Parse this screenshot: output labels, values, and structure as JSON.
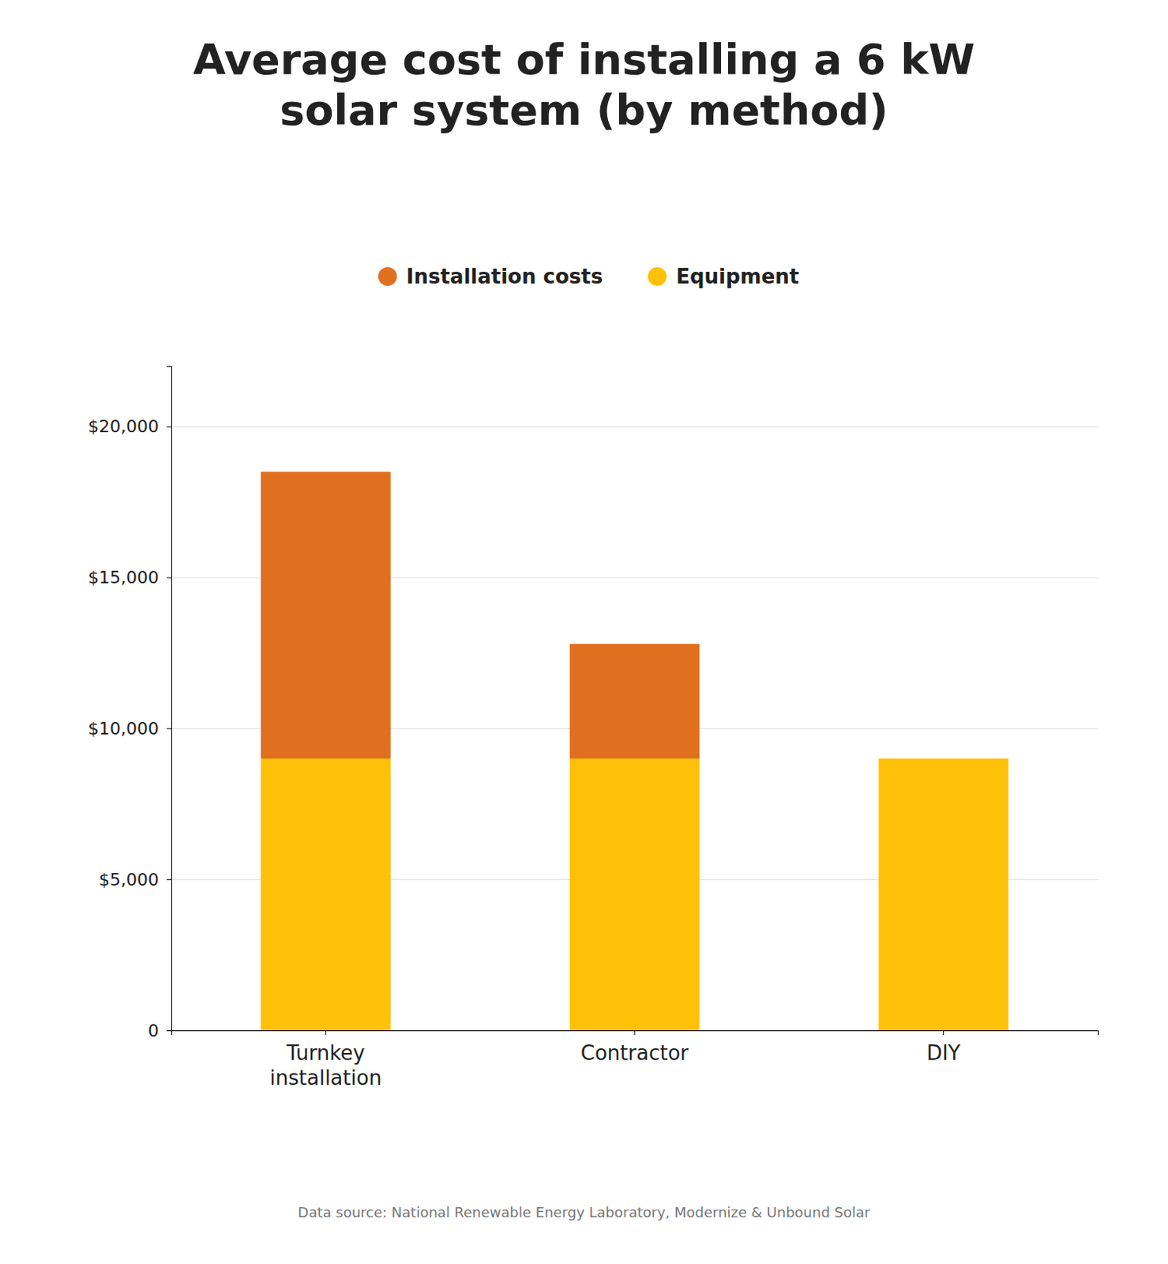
{
  "chart_data": {
    "type": "bar",
    "title": "Average cost of installing a 6 kW\nsolar system (by method)",
    "categories": [
      "Turnkey\ninstallation",
      "Contractor",
      "DIY"
    ],
    "series": [
      {
        "name": "Equipment",
        "color": "#FFC107",
        "values": [
          9000,
          9000,
          9000
        ]
      },
      {
        "name": "Installation costs",
        "color": "#E07020",
        "values": [
          9500,
          3800,
          0
        ]
      }
    ],
    "stacked": true,
    "ylim": [
      0,
      22000
    ],
    "yticks": [
      0,
      {
        "value": 5000,
        "label": "$5,000"
      },
      {
        "value": 10000,
        "label": "$10,000"
      },
      {
        "value": 15000,
        "label": "$15,000"
      },
      {
        "value": 20000,
        "label": "$20,000"
      }
    ],
    "grid": true,
    "legend": "top",
    "annotations": [
      "Data source: National Renewable Energy Laboratory, Modernize & Unbound Solar"
    ]
  }
}
